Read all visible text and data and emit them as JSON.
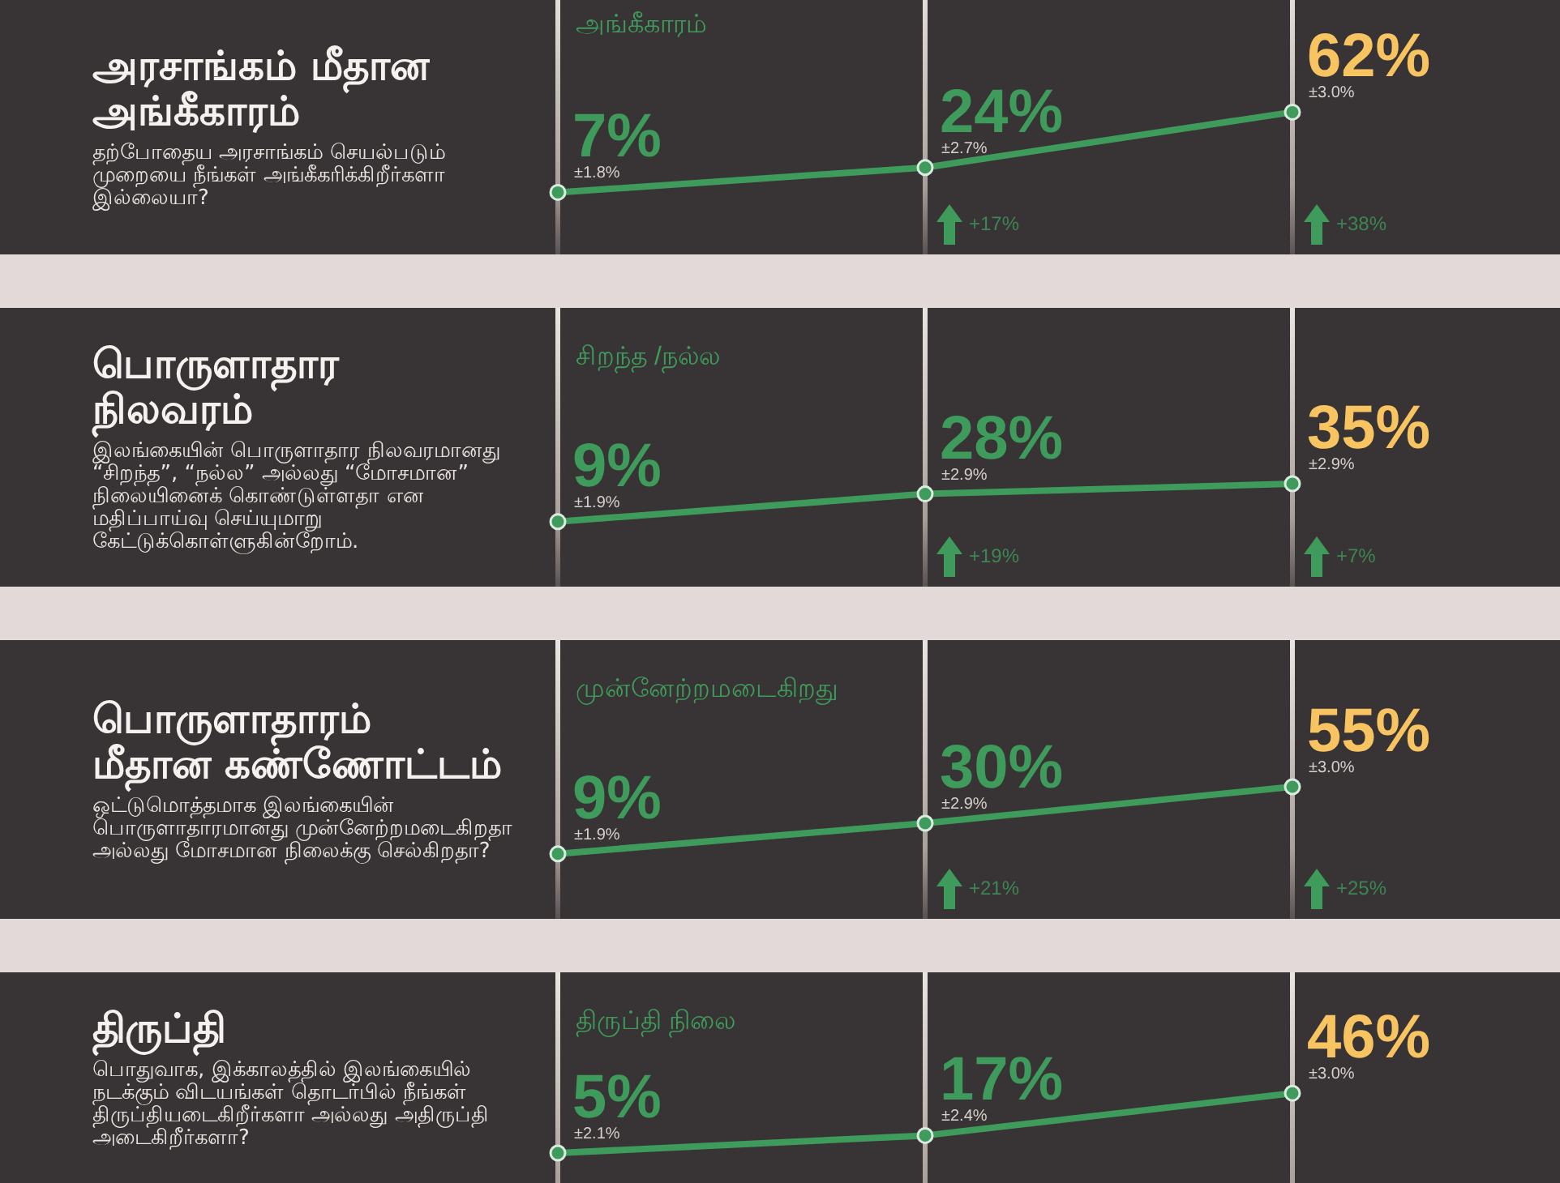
{
  "chart_data": [
    {
      "type": "line",
      "title": "அரசாங்கம் மீதான\nஅங்கீகாரம்",
      "subtitle": "தற்போதைய அரசாங்கம் செயல்படும்\nமுறையை நீங்கள் அங்கீகரிக்கிறீர்களா\nஇல்லையா?",
      "categories": [
        null,
        null,
        null
      ],
      "series": [
        {
          "name": "அங்கீகாரம்",
          "color": "#3e9b5b",
          "values": [
            7,
            24,
            62
          ],
          "value_labels": [
            "7%",
            "24%",
            "62%"
          ]
        }
      ],
      "annotations": [
        "±1.8%",
        "±2.7%",
        "±3.0%",
        "+17%",
        "+38%"
      ],
      "grid": "x",
      "marker": "circle"
    },
    {
      "type": "line",
      "title": "பொருளாதார\nநிலவரம்",
      "subtitle": "இலங்கையின் பொருளாதார நிலவரமானது\n“சிறந்த”, “நல்ல” அல்லது “மோசமான”\nநிலையினைக் கொண்டுள்ளதா என\nமதிப்பாய்வு செய்யுமாறு\nகேட்டுக்கொள்ளுகின்றோம்.",
      "categories": [
        null,
        null,
        null
      ],
      "series": [
        {
          "name": "சிறந்த /நல்ல",
          "color": "#3e9b5b",
          "values": [
            9,
            28,
            35
          ],
          "value_labels": [
            "9%",
            "28%",
            "35%"
          ]
        }
      ],
      "annotations": [
        "±1.9%",
        "±2.9%",
        "±2.9%",
        "+19%",
        "+7%"
      ],
      "grid": "x",
      "marker": "circle"
    },
    {
      "type": "line",
      "title": "பொருளாதாரம்\nமீதான கண்ணோட்டம்",
      "subtitle": "ஒட்டுமொத்தமாக இலங்கையின்\nபொருளாதாரமானது முன்னேற்றமடைகிறதா\nஅல்லது மோசமான நிலைக்கு செல்கிறதா?",
      "categories": [
        null,
        null,
        null
      ],
      "series": [
        {
          "name": "முன்னேற்றமடைகிறது",
          "color": "#3e9b5b",
          "values": [
            9,
            30,
            55
          ],
          "value_labels": [
            "9%",
            "30%",
            "55%"
          ]
        }
      ],
      "annotations": [
        "±1.9%",
        "±2.9%",
        "±3.0%",
        "+21%",
        "+25%"
      ],
      "grid": "x",
      "marker": "circle"
    },
    {
      "type": "line",
      "title": "திருப்தி",
      "subtitle": "பொதுவாக, இக்காலத்தில் இலங்கையில்\nநடக்கும் விடயங்கள் தொடர்பில் நீங்கள்\nதிருப்தியடைகிறீர்களா அல்லது அதிருப்தி\nஅடைகிறீர்களா?",
      "categories": [
        null,
        null,
        null
      ],
      "series": [
        {
          "name": "திருப்தி நிலை",
          "color": "#3e9b5b",
          "values": [
            5,
            17,
            46
          ],
          "value_labels": [
            "5%",
            "17%",
            "46%"
          ]
        }
      ],
      "annotations": [
        "±2.1%",
        "±2.4%",
        "±3.0%"
      ],
      "grid": "x",
      "marker": "circle"
    }
  ]
}
